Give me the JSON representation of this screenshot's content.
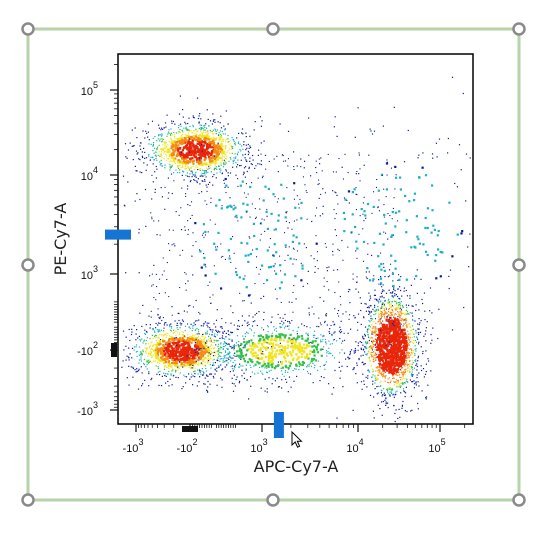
{
  "colors": {
    "selection_frame": "#b7d3a8",
    "handle_stroke": "#8a8a8a",
    "marker": "#1574d4",
    "density_low": "#0a1aa8",
    "density_mid": "#19b0c8",
    "density_high": "#f0e41c",
    "density_peak": "#e8260a"
  },
  "cursor": {
    "name": "arrow-cursor-icon"
  },
  "chart_data": {
    "type": "scatter",
    "subtype": "density-dot-plot",
    "title": "",
    "xlabel": "APC-Cy7-A",
    "ylabel": "PE-Cy7-A",
    "x_scale": "biexponential",
    "y_scale": "biexponential",
    "xlim": [
      -1500,
      250000
    ],
    "ylim": [
      -1300,
      250000
    ],
    "x_ticks": [
      {
        "value": -1000,
        "base": "-10",
        "exp": "3"
      },
      {
        "value": -100,
        "base": "-10",
        "exp": "2"
      },
      {
        "value": 1000,
        "base": "10",
        "exp": "3"
      },
      {
        "value": 10000,
        "base": "10",
        "exp": "4"
      },
      {
        "value": 100000,
        "base": "10",
        "exp": "5"
      }
    ],
    "y_ticks": [
      {
        "value": -1000,
        "base": "-10",
        "exp": "3"
      },
      {
        "value": -100,
        "base": "-10",
        "exp": "2"
      },
      {
        "value": 1000,
        "base": "10",
        "exp": "3"
      },
      {
        "value": 10000,
        "base": "10",
        "exp": "4"
      },
      {
        "value": 100000,
        "base": "10",
        "exp": "5"
      }
    ],
    "grid": false,
    "legend": "none",
    "populations": [
      {
        "x": -80,
        "y": 20000,
        "density": "high"
      },
      {
        "x": -150,
        "y": -100,
        "density": "high"
      },
      {
        "x": 1500,
        "y": -100,
        "density": "medium"
      },
      {
        "x": 25000,
        "y": -80,
        "density": "peak"
      },
      {
        "x": 500,
        "y": 2500,
        "density": "sparse"
      },
      {
        "x": 30000,
        "y": 3000,
        "density": "sparse"
      }
    ],
    "axis_markers": [
      {
        "axis": "y",
        "value": 2500
      },
      {
        "axis": "x",
        "value": 1500
      }
    ]
  }
}
